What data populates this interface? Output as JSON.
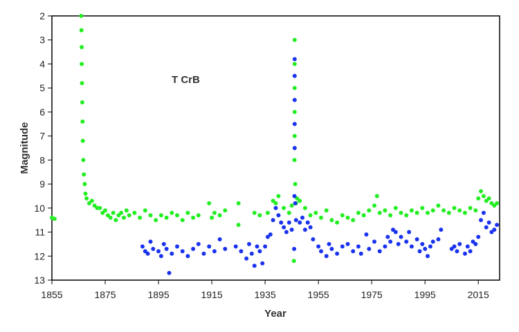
{
  "chart_data": {
    "type": "scatter",
    "title": "",
    "annotation": "T CrB",
    "xlabel": "Year",
    "ylabel": "Magnitude",
    "xlim": [
      1855,
      2023
    ],
    "ylim": [
      13,
      2
    ],
    "y_reversed": true,
    "grid": false,
    "x_ticks": [
      1855,
      1875,
      1895,
      1915,
      1935,
      1955,
      1975,
      1995,
      2015
    ],
    "y_ticks": [
      2,
      3,
      4,
      5,
      6,
      7,
      8,
      9,
      10,
      11,
      12,
      13
    ],
    "series": [
      {
        "color": "#22ee22",
        "points": [
          [
            1855,
            10.4
          ],
          [
            1856,
            10.45
          ],
          [
            1866.0,
            2.0
          ],
          [
            1866.1,
            2.6
          ],
          [
            1866.2,
            3.3
          ],
          [
            1866.2,
            4.0
          ],
          [
            1866.3,
            4.8
          ],
          [
            1866.4,
            5.6
          ],
          [
            1866.5,
            6.4
          ],
          [
            1866.6,
            7.2
          ],
          [
            1866.8,
            8.0
          ],
          [
            1867.0,
            8.6
          ],
          [
            1867.3,
            9.0
          ],
          [
            1867.6,
            9.4
          ],
          [
            1868,
            9.6
          ],
          [
            1869,
            9.8
          ],
          [
            1870,
            9.7
          ],
          [
            1871,
            9.9
          ],
          [
            1872,
            10.0
          ],
          [
            1873,
            10.0
          ],
          [
            1874,
            10.2
          ],
          [
            1875,
            10.1
          ],
          [
            1876,
            10.3
          ],
          [
            1877,
            10.4
          ],
          [
            1878,
            10.2
          ],
          [
            1879,
            10.5
          ],
          [
            1880,
            10.3
          ],
          [
            1881,
            10.2
          ],
          [
            1882,
            10.4
          ],
          [
            1883,
            10.1
          ],
          [
            1884,
            10.3
          ],
          [
            1886,
            10.2
          ],
          [
            1888,
            10.4
          ],
          [
            1890,
            10.1
          ],
          [
            1892,
            10.3
          ],
          [
            1894,
            10.5
          ],
          [
            1896,
            10.3
          ],
          [
            1898,
            10.4
          ],
          [
            1900,
            10.2
          ],
          [
            1902,
            10.3
          ],
          [
            1904,
            10.5
          ],
          [
            1906,
            10.2
          ],
          [
            1908,
            10.4
          ],
          [
            1910,
            10.3
          ],
          [
            1914,
            9.8
          ],
          [
            1915,
            10.4
          ],
          [
            1916,
            10.2
          ],
          [
            1918,
            10.3
          ],
          [
            1920,
            10.1
          ],
          [
            1925,
            9.8
          ],
          [
            1925,
            10.7
          ],
          [
            1931,
            10.2
          ],
          [
            1933,
            10.3
          ],
          [
            1936,
            10.2
          ],
          [
            1938,
            9.7
          ],
          [
            1939,
            9.8
          ],
          [
            1940,
            9.5
          ],
          [
            1942,
            10.0
          ],
          [
            1944,
            10.2
          ],
          [
            1945,
            9.9
          ],
          [
            1945.8,
            12.2
          ],
          [
            1946.0,
            8.0
          ],
          [
            1946.1,
            7.0
          ],
          [
            1946.1,
            6.0
          ],
          [
            1946.1,
            5.0
          ],
          [
            1946.1,
            4.0
          ],
          [
            1946.1,
            3.0
          ],
          [
            1946.3,
            9.0
          ],
          [
            1946.6,
            9.8
          ],
          [
            1947,
            9.6
          ],
          [
            1948,
            9.7
          ],
          [
            1950,
            10.0
          ],
          [
            1952,
            10.3
          ],
          [
            1954,
            10.2
          ],
          [
            1956,
            10.4
          ],
          [
            1958,
            10.1
          ],
          [
            1960,
            10.5
          ],
          [
            1962,
            10.6
          ],
          [
            1964,
            10.3
          ],
          [
            1966,
            10.4
          ],
          [
            1968,
            10.5
          ],
          [
            1970,
            10.2
          ],
          [
            1972,
            10.3
          ],
          [
            1974,
            10.1
          ],
          [
            1976,
            9.9
          ],
          [
            1977,
            9.5
          ],
          [
            1978,
            10.2
          ],
          [
            1980,
            10.1
          ],
          [
            1982,
            10.3
          ],
          [
            1984,
            10.0
          ],
          [
            1986,
            10.2
          ],
          [
            1988,
            10.3
          ],
          [
            1990,
            10.1
          ],
          [
            1992,
            10.2
          ],
          [
            1994,
            10.0
          ],
          [
            1996,
            10.2
          ],
          [
            1998,
            10.1
          ],
          [
            2000,
            9.9
          ],
          [
            2002,
            10.1
          ],
          [
            2004,
            10.2
          ],
          [
            2006,
            10.0
          ],
          [
            2008,
            10.1
          ],
          [
            2010,
            10.2
          ],
          [
            2012,
            10.0
          ],
          [
            2014,
            10.1
          ],
          [
            2015,
            9.6
          ],
          [
            2016,
            9.3
          ],
          [
            2017,
            9.5
          ],
          [
            2018,
            9.7
          ],
          [
            2019,
            9.6
          ],
          [
            2020,
            9.8
          ],
          [
            2021,
            9.9
          ],
          [
            2022,
            9.8
          ]
        ]
      },
      {
        "color": "#1a33ee",
        "points": [
          [
            1889,
            11.6
          ],
          [
            1890,
            11.8
          ],
          [
            1891,
            11.9
          ],
          [
            1892,
            11.4
          ],
          [
            1893,
            11.7
          ],
          [
            1895,
            11.8
          ],
          [
            1896,
            12.0
          ],
          [
            1897,
            11.5
          ],
          [
            1898,
            11.7
          ],
          [
            1899,
            12.7
          ],
          [
            1900,
            11.9
          ],
          [
            1902,
            11.6
          ],
          [
            1904,
            11.8
          ],
          [
            1906,
            12.0
          ],
          [
            1908,
            11.7
          ],
          [
            1910,
            11.5
          ],
          [
            1912,
            11.9
          ],
          [
            1914,
            11.6
          ],
          [
            1916,
            11.8
          ],
          [
            1918,
            11.3
          ],
          [
            1920,
            11.7
          ],
          [
            1924,
            11.6
          ],
          [
            1926,
            11.8
          ],
          [
            1928,
            12.1
          ],
          [
            1929,
            11.5
          ],
          [
            1930,
            11.9
          ],
          [
            1931,
            12.4
          ],
          [
            1932,
            11.6
          ],
          [
            1933,
            11.8
          ],
          [
            1934,
            12.3
          ],
          [
            1935,
            11.6
          ],
          [
            1936,
            11.2
          ],
          [
            1937,
            11.1
          ],
          [
            1938,
            10.5
          ],
          [
            1939,
            10.0
          ],
          [
            1940,
            10.3
          ],
          [
            1941,
            10.6
          ],
          [
            1942,
            10.8
          ],
          [
            1943,
            11.0
          ],
          [
            1944,
            10.6
          ],
          [
            1945,
            10.9
          ],
          [
            1945.9,
            11.7
          ],
          [
            1946.0,
            9.5
          ],
          [
            1946.1,
            7.5
          ],
          [
            1946.1,
            6.5
          ],
          [
            1946.1,
            5.5
          ],
          [
            1946.1,
            4.5
          ],
          [
            1946.1,
            3.8
          ],
          [
            1946.3,
            9.8
          ],
          [
            1946.6,
            10.5
          ],
          [
            1948,
            10.6
          ],
          [
            1949,
            10.4
          ],
          [
            1950,
            10.9
          ],
          [
            1951,
            10.6
          ],
          [
            1952,
            10.8
          ],
          [
            1953,
            11.3
          ],
          [
            1955,
            11.6
          ],
          [
            1956,
            11.8
          ],
          [
            1958,
            12.0
          ],
          [
            1959,
            11.5
          ],
          [
            1960,
            11.7
          ],
          [
            1962,
            11.9
          ],
          [
            1964,
            11.6
          ],
          [
            1966,
            11.5
          ],
          [
            1968,
            11.8
          ],
          [
            1970,
            11.6
          ],
          [
            1971,
            11.9
          ],
          [
            1973,
            11.1
          ],
          [
            1974,
            11.7
          ],
          [
            1976,
            11.4
          ],
          [
            1978,
            11.8
          ],
          [
            1980,
            11.6
          ],
          [
            1981,
            11.2
          ],
          [
            1982,
            11.4
          ],
          [
            1983,
            10.9
          ],
          [
            1984,
            11.0
          ],
          [
            1985,
            11.5
          ],
          [
            1986,
            11.2
          ],
          [
            1988,
            11.4
          ],
          [
            1989,
            11.0
          ],
          [
            1990,
            11.6
          ],
          [
            1992,
            11.3
          ],
          [
            1993,
            11.8
          ],
          [
            1994,
            11.5
          ],
          [
            1995,
            11.7
          ],
          [
            1996,
            12.0
          ],
          [
            1997,
            11.6
          ],
          [
            1998,
            11.4
          ],
          [
            2000,
            11.3
          ],
          [
            2001,
            10.9
          ],
          [
            2005,
            11.7
          ],
          [
            2006,
            11.6
          ],
          [
            2007,
            11.8
          ],
          [
            2008,
            11.5
          ],
          [
            2010,
            11.9
          ],
          [
            2011,
            11.6
          ],
          [
            2012,
            11.8
          ],
          [
            2013,
            11.4
          ],
          [
            2014,
            11.5
          ],
          [
            2015,
            11.2
          ],
          [
            2016,
            10.5
          ],
          [
            2017,
            10.2
          ],
          [
            2018,
            10.8
          ],
          [
            2019,
            10.6
          ],
          [
            2020,
            11.0
          ],
          [
            2021,
            10.9
          ],
          [
            2022,
            10.7
          ]
        ]
      }
    ]
  }
}
